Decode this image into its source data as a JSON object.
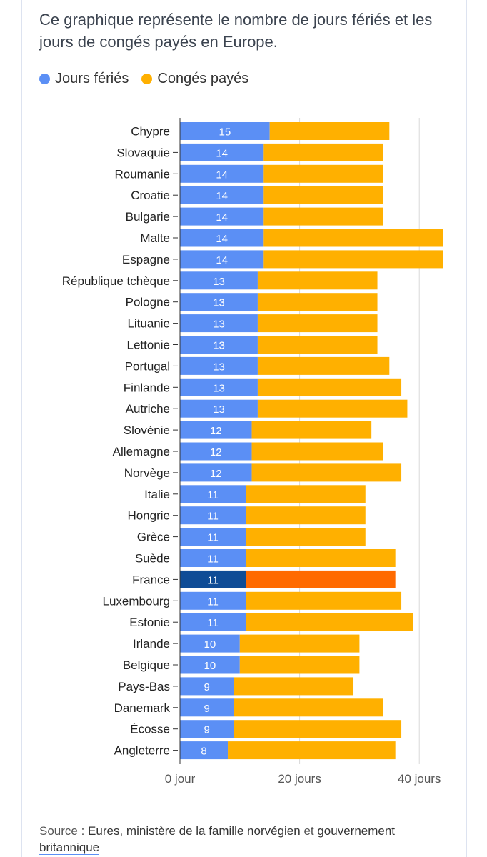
{
  "description": "Ce graphique représente le nombre de jours fériés et les jours de congés payés en Europe.",
  "legend": [
    {
      "label": "Jours fériés",
      "color": "#5b8ff5"
    },
    {
      "label": "Congés payés",
      "color": "#ffb000"
    }
  ],
  "source": {
    "prefix": "Source : ",
    "link1": "Eures",
    "sep1": ", ",
    "link2": "ministère de la famille norvégien",
    "sep2": " et ",
    "link3": "gouvernement britannique"
  },
  "chart_data": {
    "type": "bar",
    "orientation": "horizontal",
    "stacked": true,
    "categories": [
      "Chypre",
      "Slovaquie",
      "Roumanie",
      "Croatie",
      "Bulgarie",
      "Malte",
      "Espagne",
      "République tchèque",
      "Pologne",
      "Lituanie",
      "Lettonie",
      "Portugal",
      "Finlande",
      "Autriche",
      "Slovénie",
      "Allemagne",
      "Norvège",
      "Italie",
      "Hongrie",
      "Grèce",
      "Suède",
      "France",
      "Luxembourg",
      "Estonie",
      "Irlande",
      "Belgique",
      "Pays-Bas",
      "Danemark",
      "Écosse",
      "Angleterre"
    ],
    "series": [
      {
        "name": "Jours fériés",
        "color": "#5b8ff5",
        "values": [
          15,
          14,
          14,
          14,
          14,
          14,
          14,
          13,
          13,
          13,
          13,
          13,
          13,
          13,
          12,
          12,
          12,
          11,
          11,
          11,
          11,
          11,
          11,
          11,
          10,
          10,
          9,
          9,
          9,
          8
        ]
      },
      {
        "name": "Congés payés",
        "color": "#ffb000",
        "values": [
          20,
          20,
          20,
          20,
          20,
          30,
          30,
          20,
          20,
          20,
          20,
          22,
          24,
          25,
          20,
          22,
          25,
          20,
          20,
          20,
          25,
          25,
          26,
          28,
          20,
          20,
          20,
          25,
          28,
          28
        ]
      }
    ],
    "highlight": {
      "category": "France",
      "colors": [
        "#0f4c96",
        "#ff6a00"
      ]
    },
    "xlim": [
      0,
      45
    ],
    "xticks": [
      {
        "value": 0,
        "label": "0 jour"
      },
      {
        "value": 20,
        "label": "20 jours"
      },
      {
        "value": 40,
        "label": "40 jours"
      }
    ],
    "grid": true,
    "legend_position": "top-left"
  }
}
